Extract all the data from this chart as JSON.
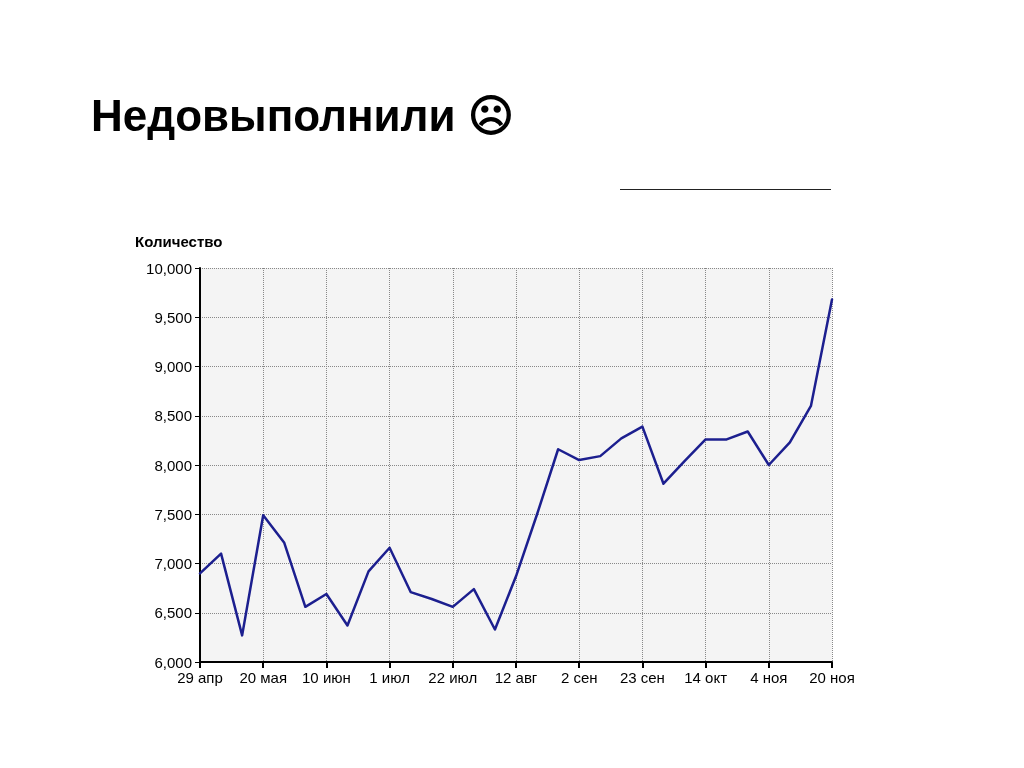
{
  "chart_data": {
    "type": "line",
    "title": "Недовыполнили ☹",
    "ylabel": "Количество",
    "categories": [
      "29 апр",
      null,
      null,
      "20 мая",
      null,
      null,
      "10 июн",
      null,
      null,
      "1 июл",
      null,
      null,
      "22 июл",
      null,
      null,
      "12 авг",
      null,
      null,
      "2 сен",
      null,
      null,
      "23 сен",
      null,
      null,
      "14 окт",
      null,
      null,
      "4 ноя",
      null,
      null,
      "20 ноя"
    ],
    "series": [
      {
        "color": "#1c1f8f",
        "values": [
          6900,
          7100,
          6270,
          7490,
          7210,
          6560,
          6690,
          6370,
          6920,
          7160,
          6710,
          6640,
          6560,
          6740,
          6330,
          6870,
          7500,
          8160,
          8050,
          8090,
          8270,
          8390,
          7810,
          8040,
          8260,
          8260,
          8340,
          8000,
          8230,
          8600,
          9680
        ]
      }
    ],
    "ylim": [
      6000,
      10000
    ],
    "yticks": [
      {
        "value": 6000,
        "label": "6,000"
      },
      {
        "value": 6500,
        "label": "6,500"
      },
      {
        "value": 7000,
        "label": "7,000"
      },
      {
        "value": 7500,
        "label": "7,500"
      },
      {
        "value": 8000,
        "label": "8,000"
      },
      {
        "value": 8500,
        "label": "8,500"
      },
      {
        "value": 9000,
        "label": "9,000"
      },
      {
        "value": 9500,
        "label": "9,500"
      },
      {
        "value": 10000,
        "label": "10,000"
      }
    ],
    "grid": true,
    "marker": "none",
    "line_style": "solid"
  }
}
